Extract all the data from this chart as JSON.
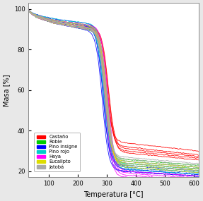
{
  "xlabel": "Temperatura [°C]",
  "ylabel": "Masa [%]",
  "xlim": [
    30,
    615
  ],
  "ylim": [
    17,
    103
  ],
  "xticks": [
    100,
    200,
    300,
    400,
    500,
    600
  ],
  "yticks": [
    20,
    40,
    60,
    80,
    100
  ],
  "background_color": "#e8e8e8",
  "plot_bg_color": "#ffffff",
  "fontsize": 7,
  "legend_names": [
    "Castaño",
    "Roble",
    "Pino insigne",
    "Pino rojo",
    "Haya",
    "Eucalipto",
    "Jatobá"
  ],
  "colors": [
    "#ff0000",
    "#00cc00",
    "#0000ff",
    "#00cccc",
    "#ff00ff",
    "#dddd00",
    "#aaaaaa"
  ],
  "species_params": [
    [
      {
        "p1": 92,
        "ds": 235,
        "de": 368,
        "fin": 30,
        "s": 1
      },
      {
        "p1": 91,
        "ds": 232,
        "de": 365,
        "fin": 32,
        "s": 2
      },
      {
        "p1": 90,
        "ds": 238,
        "de": 372,
        "fin": 29,
        "s": 3
      },
      {
        "p1": 92,
        "ds": 230,
        "de": 362,
        "fin": 34,
        "s": 4
      },
      {
        "p1": 91,
        "ds": 240,
        "de": 370,
        "fin": 31,
        "s": 5
      }
    ],
    [
      {
        "p1": 91,
        "ds": 230,
        "de": 362,
        "fin": 24,
        "s": 11
      },
      {
        "p1": 90,
        "ds": 228,
        "de": 360,
        "fin": 25,
        "s": 12
      },
      {
        "p1": 92,
        "ds": 233,
        "de": 365,
        "fin": 23,
        "s": 13
      },
      {
        "p1": 91,
        "ds": 225,
        "de": 358,
        "fin": 26,
        "s": 14
      }
    ],
    [
      {
        "p1": 92,
        "ds": 225,
        "de": 358,
        "fin": 21,
        "s": 21
      },
      {
        "p1": 91,
        "ds": 222,
        "de": 355,
        "fin": 20,
        "s": 22
      },
      {
        "p1": 93,
        "ds": 228,
        "de": 360,
        "fin": 22,
        "s": 23
      },
      {
        "p1": 92,
        "ds": 220,
        "de": 352,
        "fin": 23,
        "s": 24
      },
      {
        "p1": 91,
        "ds": 230,
        "de": 362,
        "fin": 21,
        "s": 25
      },
      {
        "p1": 90,
        "ds": 218,
        "de": 350,
        "fin": 20,
        "s": 26
      }
    ],
    [
      {
        "p1": 92,
        "ds": 228,
        "de": 360,
        "fin": 22,
        "s": 31
      },
      {
        "p1": 91,
        "ds": 225,
        "de": 358,
        "fin": 23,
        "s": 32
      },
      {
        "p1": 93,
        "ds": 230,
        "de": 362,
        "fin": 21,
        "s": 33
      },
      {
        "p1": 91,
        "ds": 222,
        "de": 355,
        "fin": 24,
        "s": 34
      }
    ],
    [
      {
        "p1": 91,
        "ds": 235,
        "de": 368,
        "fin": 19,
        "s": 41
      },
      {
        "p1": 90,
        "ds": 232,
        "de": 365,
        "fin": 18,
        "s": 42
      },
      {
        "p1": 92,
        "ds": 238,
        "de": 370,
        "fin": 20,
        "s": 43
      },
      {
        "p1": 91,
        "ds": 228,
        "de": 360,
        "fin": 17,
        "s": 44
      }
    ],
    [
      {
        "p1": 91,
        "ds": 232,
        "de": 362,
        "fin": 23,
        "s": 51
      },
      {
        "p1": 92,
        "ds": 230,
        "de": 360,
        "fin": 24,
        "s": 52
      },
      {
        "p1": 90,
        "ds": 235,
        "de": 365,
        "fin": 22,
        "s": 53
      },
      {
        "p1": 91,
        "ds": 228,
        "de": 358,
        "fin": 25,
        "s": 54
      }
    ],
    [
      {
        "p1": 91,
        "ds": 230,
        "de": 362,
        "fin": 25,
        "s": 61
      },
      {
        "p1": 90,
        "ds": 228,
        "de": 360,
        "fin": 26,
        "s": 62
      },
      {
        "p1": 92,
        "ds": 233,
        "de": 365,
        "fin": 24,
        "s": 63
      },
      {
        "p1": 91,
        "ds": 225,
        "de": 358,
        "fin": 27,
        "s": 64
      },
      {
        "p1": 90,
        "ds": 235,
        "de": 368,
        "fin": 23,
        "s": 65
      }
    ]
  ]
}
